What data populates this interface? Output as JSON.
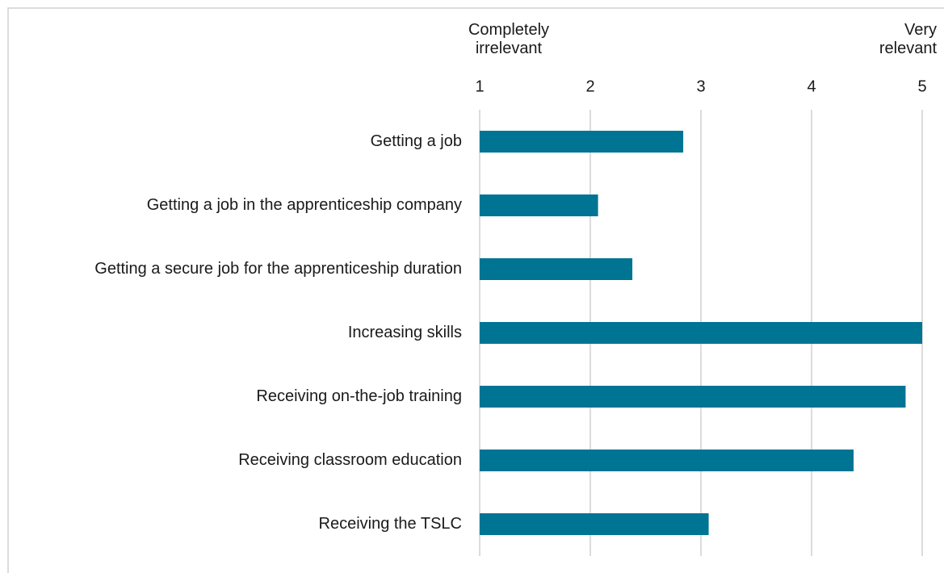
{
  "chart_data": {
    "type": "bar",
    "orientation": "horizontal",
    "x_axis_end_labels": {
      "low": "Completely irrelevant",
      "high": "Very relevant"
    },
    "categories": [
      "Getting a job",
      "Getting a job in the apprenticeship company",
      "Getting a secure job for the apprenticeship duration",
      "Increasing skills",
      "Receiving on-the-job training",
      "Receiving classroom education",
      "Receiving the TSLC"
    ],
    "values": [
      2.84,
      2.07,
      2.38,
      5.0,
      4.85,
      4.38,
      3.07
    ],
    "color": "#007493",
    "xlim": [
      1,
      5
    ],
    "xticks": [
      1,
      2,
      3,
      4,
      5
    ],
    "grid": true
  }
}
